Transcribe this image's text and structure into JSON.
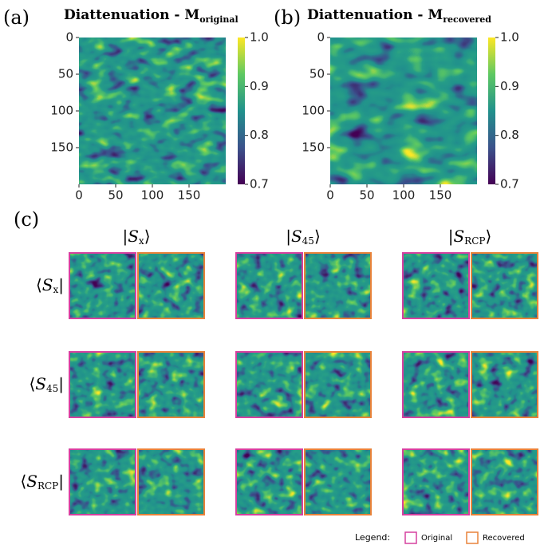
{
  "panels": [
    {
      "label": "(a)",
      "title": {
        "text": "Diattenuation - M",
        "sub": "original"
      },
      "xlim": [
        0,
        200
      ],
      "ylim": [
        0,
        200
      ],
      "xticks": [
        0,
        50,
        100,
        150
      ],
      "yticks": [
        0,
        50,
        100,
        150
      ],
      "clim": [
        0.7,
        1
      ],
      "cticks": [
        {
          "value": 1,
          "label": "1.0"
        },
        0.9,
        0.8,
        0.7
      ]
    },
    {
      "label": "(b)",
      "title": {
        "text": "Diattenuation - M",
        "sub": "recovered"
      },
      "xlim": [
        0,
        200
      ],
      "ylim": [
        0,
        200
      ],
      "xticks": [
        0,
        50,
        100,
        150
      ],
      "yticks": [
        0,
        50,
        100,
        150
      ],
      "clim": [
        0.7,
        1
      ],
      "cticks": [
        {
          "value": 1,
          "label": "1.0"
        },
        0.9,
        0.8,
        0.7
      ]
    }
  ],
  "grid": {
    "label": "(c)",
    "columns": [
      {
        "open": "|",
        "symbol": "S",
        "sub": "x",
        "close": "⟩"
      },
      {
        "open": "|",
        "symbol": "S",
        "sub": "45",
        "close": "⟩"
      },
      {
        "open": "|",
        "symbol": "S",
        "sub": "RCP",
        "close": "⟩"
      }
    ],
    "rows": [
      {
        "open": "⟨",
        "symbol": "S",
        "sub": "x",
        "close": "|"
      },
      {
        "open": "⟨",
        "symbol": "S",
        "sub": "45",
        "close": "|"
      },
      {
        "open": "⟨",
        "symbol": "S",
        "sub": "RCP",
        "close": "|"
      }
    ]
  },
  "legend": {
    "title": "Legend:",
    "items": [
      {
        "label": "Original",
        "color": "#d6409f"
      },
      {
        "label": "Recovered",
        "color": "#e8823a"
      }
    ]
  }
}
